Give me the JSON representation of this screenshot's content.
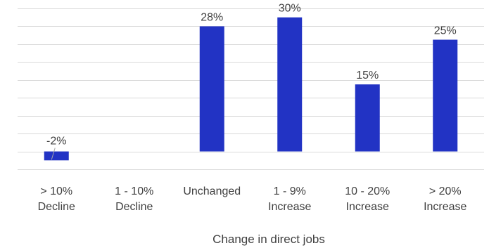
{
  "chart_data": {
    "type": "bar",
    "categories": [
      [
        "> 10%",
        "Decline"
      ],
      [
        "1 - 10%",
        "Decline"
      ],
      [
        "Unchanged"
      ],
      [
        "1 - 9%",
        "Increase"
      ],
      [
        "10 - 20%",
        "Increase"
      ],
      [
        "> 20%",
        "Increase"
      ]
    ],
    "values": [
      -2,
      0,
      28,
      30,
      15,
      25
    ],
    "data_labels": [
      "-2%",
      "",
      "28%",
      "30%",
      "15%",
      "25%"
    ],
    "title": "",
    "xlabel": "Change in direct jobs",
    "ylabel": "",
    "ylim": [
      -4,
      32
    ],
    "gridline_step": 4,
    "grid": true,
    "legend": "none",
    "bar_color": "#2233c4",
    "grid_color": "#d9d9d9",
    "label_color": "#404040"
  }
}
